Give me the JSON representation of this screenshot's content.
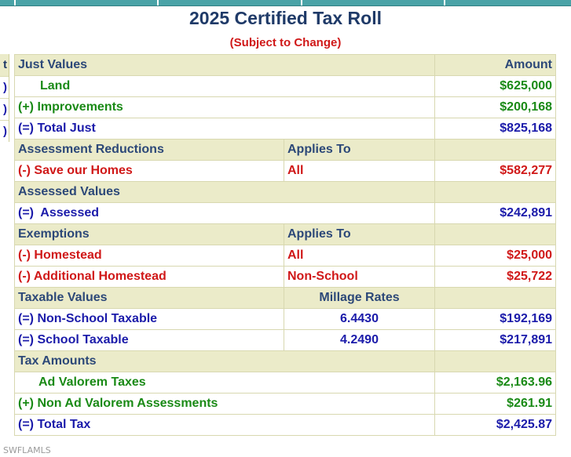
{
  "header": {
    "title": "2025 Certified Tax Roll",
    "subtitle": "(Subject to Change)"
  },
  "left_fragment": {
    "header_char": "t",
    "row_chars": [
      ")",
      ")",
      ")"
    ]
  },
  "just_values": {
    "header": "Just Values",
    "amount_header": "Amount",
    "rows": [
      {
        "label": "Land",
        "amount": "$625,000"
      },
      {
        "label": "(+) Improvements",
        "amount": "$200,168"
      },
      {
        "label": "(=) Total Just",
        "amount": "$825,168"
      }
    ]
  },
  "assessment_reductions": {
    "header": "Assessment Reductions",
    "applies_to_header": "Applies To",
    "rows": [
      {
        "label": "(-) Save our Homes",
        "applies_to": "All",
        "amount": "$582,277"
      }
    ]
  },
  "assessed_values": {
    "header": "Assessed Values",
    "rows": [
      {
        "label": "(=)  Assessed",
        "amount": "$242,891"
      }
    ]
  },
  "exemptions": {
    "header": "Exemptions",
    "applies_to_header": "Applies To",
    "rows": [
      {
        "label": "(-) Homestead",
        "applies_to": "All",
        "amount": "$25,000"
      },
      {
        "label": "(-) Additional Homestead",
        "applies_to": "Non-School",
        "amount": "$25,722"
      }
    ]
  },
  "taxable_values": {
    "header": "Taxable Values",
    "millage_header": "Millage Rates",
    "rows": [
      {
        "label": "(=) Non-School Taxable",
        "millage": "6.4430",
        "amount": "$192,169"
      },
      {
        "label": "(=) School Taxable",
        "millage": "4.2490",
        "amount": "$217,891"
      }
    ]
  },
  "tax_amounts": {
    "header": "Tax Amounts",
    "rows": [
      {
        "label": "Ad Valorem Taxes",
        "amount": "$2,163.96"
      },
      {
        "label": "(+) Non Ad Valorem Assessments",
        "amount": "$261.91"
      },
      {
        "label": "(=) Total Tax",
        "amount": "$2,425.87"
      }
    ]
  },
  "watermark": "SWFLAMLS",
  "colors": {
    "title": "#1f3a68",
    "subtitle": "#d01818",
    "header_bg": "#ebebc9",
    "green": "#1a8a16",
    "blue": "#1b1baa",
    "red": "#d01818",
    "top_strip": "#4aa3a7"
  }
}
